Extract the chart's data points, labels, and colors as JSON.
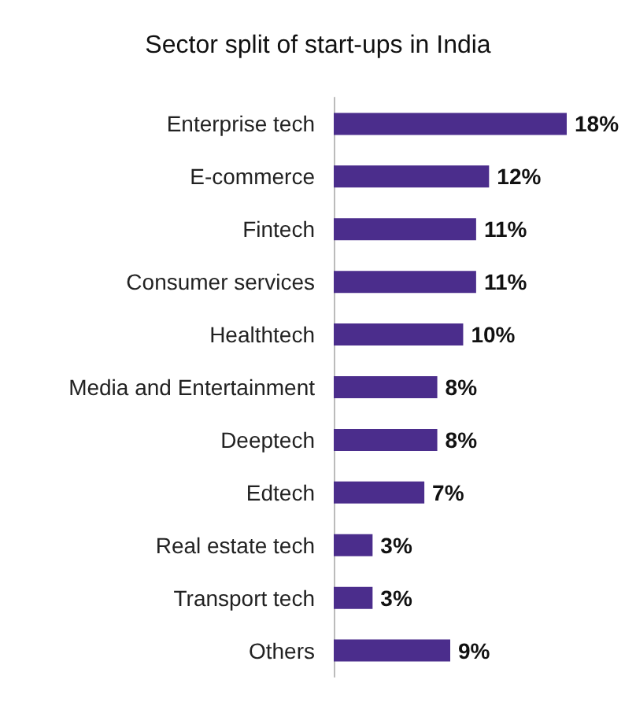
{
  "chart_data": {
    "type": "bar",
    "orientation": "horizontal",
    "title": "Sector split of start-ups in India",
    "categories": [
      "Enterprise tech",
      "E-commerce",
      "Fintech",
      "Consumer services",
      "Healthtech",
      "Media and Entertainment",
      "Deeptech",
      "Edtech",
      "Real estate tech",
      "Transport tech",
      "Others"
    ],
    "values": [
      18,
      12,
      11,
      11,
      10,
      8,
      8,
      7,
      3,
      3,
      9
    ],
    "value_labels": [
      "18%",
      "12%",
      "11%",
      "11%",
      "10%",
      "8%",
      "8%",
      "7%",
      "3%",
      "3%",
      "9%"
    ],
    "color": "#4b2d8c",
    "xlim": [
      0,
      18
    ],
    "tick_labels": "y"
  }
}
